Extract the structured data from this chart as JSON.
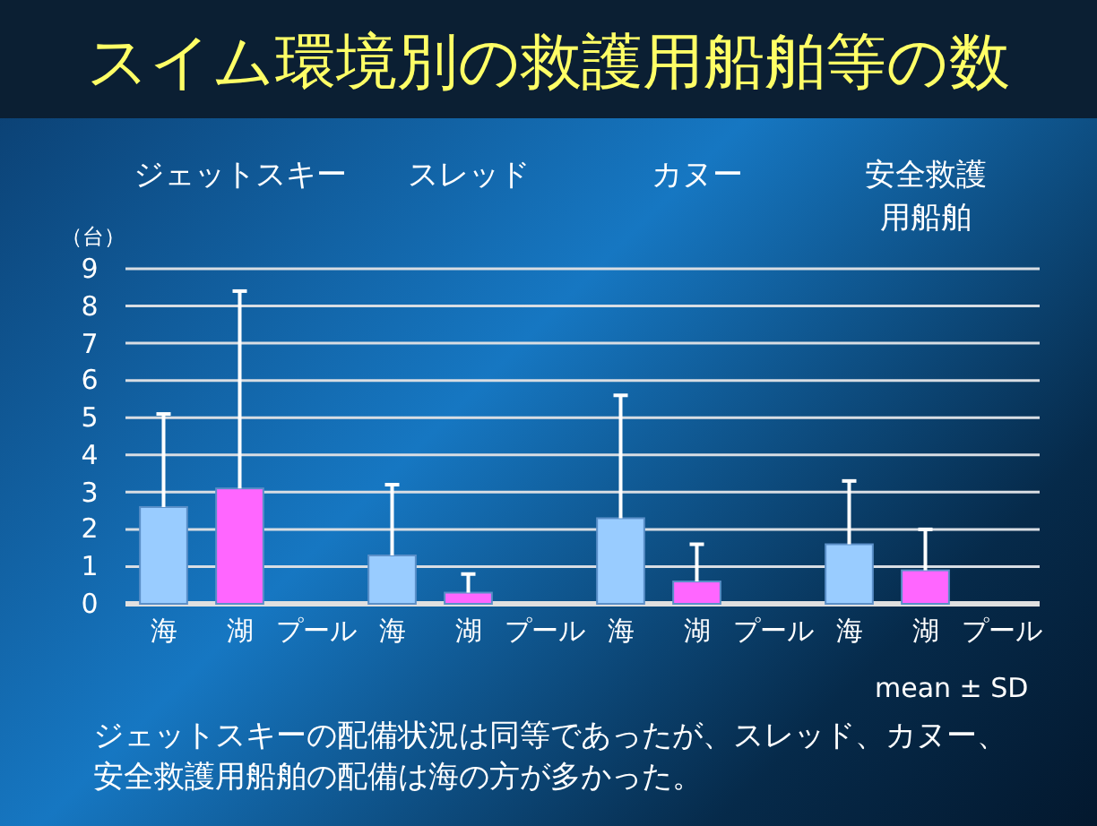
{
  "chart_data": {
    "type": "bar",
    "title": "スイム環境別の救護用船舶等の数",
    "ylabel": "（台）",
    "categories": [
      "海",
      "湖",
      "プール",
      "海",
      "湖",
      "プール",
      "海",
      "湖",
      "プール",
      "海",
      "湖",
      "プール"
    ],
    "values": [
      2.6,
      3.1,
      null,
      1.3,
      0.3,
      null,
      2.3,
      0.6,
      null,
      1.6,
      0.9,
      null
    ],
    "colors": [
      "#99ccff",
      "#ff66ff",
      null,
      "#99ccff",
      "#ff66ff",
      null,
      "#99ccff",
      "#ff66ff",
      null,
      "#99ccff",
      "#ff66ff",
      null
    ],
    "errors": [
      [
        2.6,
        5.1
      ],
      [
        3.1,
        8.4
      ],
      null,
      [
        1.3,
        3.2
      ],
      [
        0.3,
        0.8
      ],
      null,
      [
        2.3,
        5.6
      ],
      [
        0.6,
        1.6
      ],
      null,
      [
        1.6,
        3.3
      ],
      [
        0.9,
        2.0
      ],
      null
    ],
    "ylim": [
      0,
      9
    ],
    "yticks": [
      0,
      1,
      2,
      3,
      4,
      5,
      6,
      7,
      8,
      9
    ],
    "grid": "y",
    "annotations": [
      "ジェットスキー",
      "スレッド",
      "カヌー",
      "安全救護用船舶",
      "mean ± SD",
      "ジェットスキーの配備状況は同等であったが、スレッド、カヌー、安全救護用船舶の配備は海の方が多かった。"
    ]
  }
}
